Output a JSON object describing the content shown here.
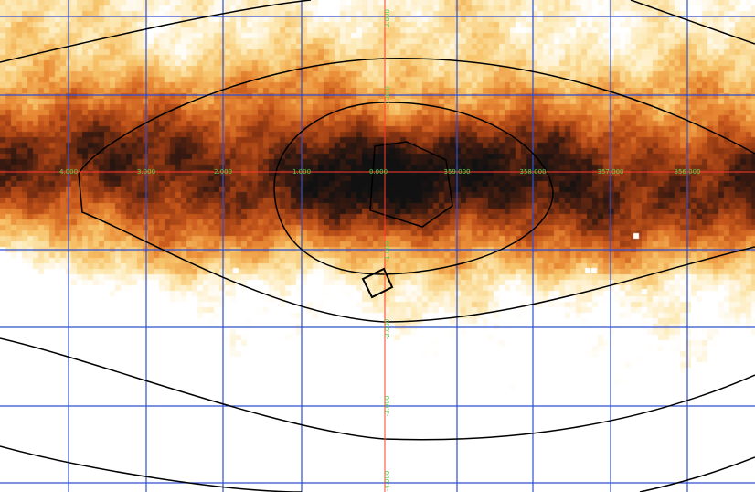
{
  "viewer": {
    "colormap": [
      "#ffffff",
      "#fde9b4",
      "#f7c46b",
      "#ea8d37",
      "#c8581c",
      "#8e3612",
      "#3a1a10",
      "#111111"
    ],
    "grid_color": "#2f4fd0",
    "axis_color": "#ff3b30",
    "label_color": "#57d24a",
    "contour_color": "#000000"
  },
  "axes": {
    "lon_labels": [
      "4.000",
      "3.000",
      "2.000",
      "1.000",
      "0.000",
      "359.000",
      "358.000",
      "357.000",
      "356.000"
    ],
    "lat_labels": [
      "2.000",
      "1.000",
      "-1.000",
      "-2.000",
      "-3.000",
      "-4.000"
    ]
  }
}
